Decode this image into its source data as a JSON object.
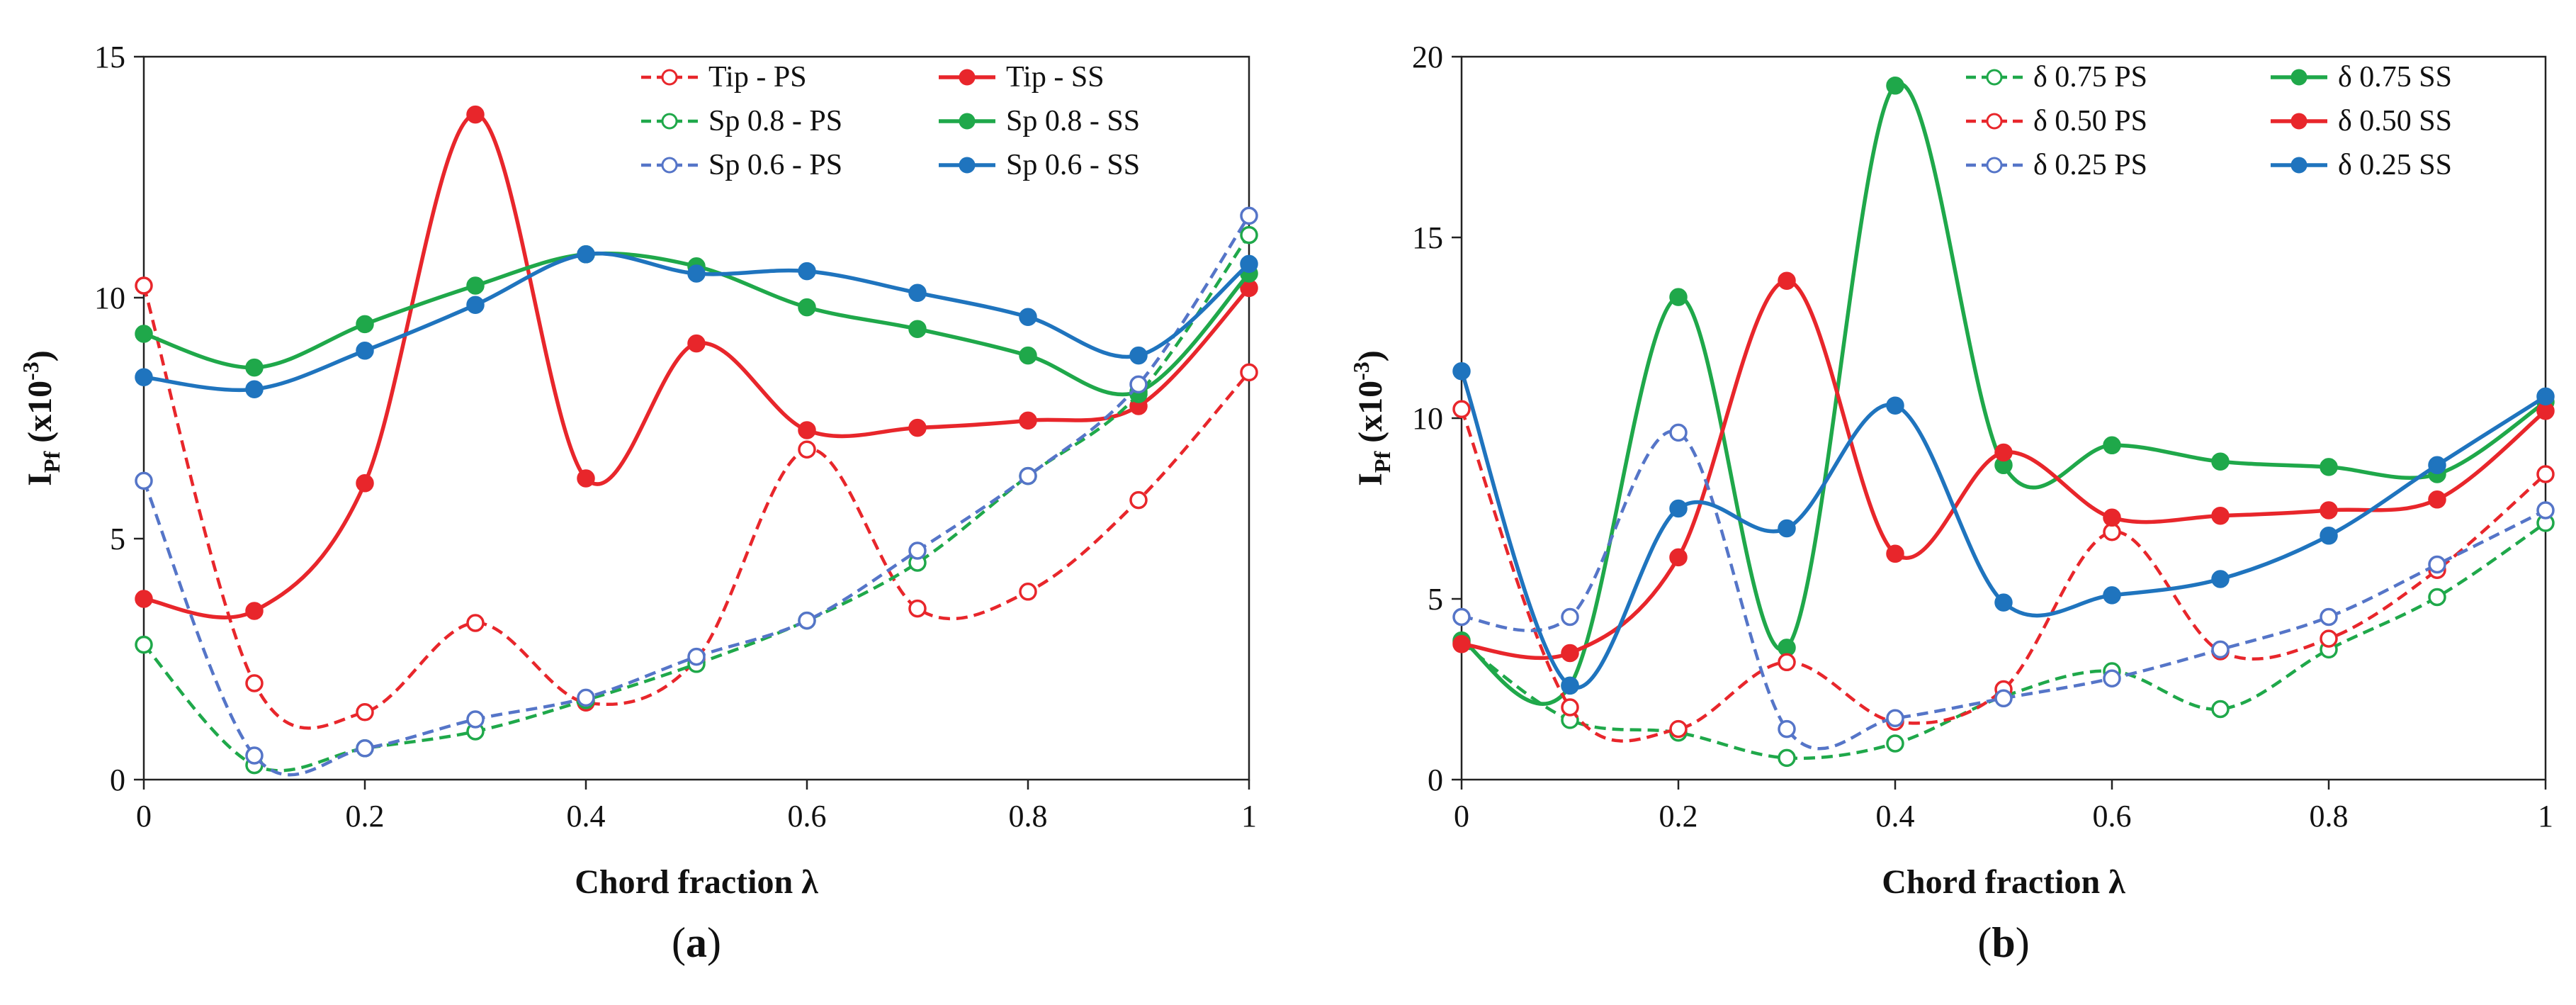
{
  "chart_data": [
    {
      "type": "line",
      "panel_label": "(a)",
      "panel_letter": "a",
      "xlabel": "Chord fraction λ",
      "ylabel_main": "I",
      "ylabel_sub": "Pf",
      "ylabel_rest": " (x10",
      "ylabel_exp": "-3",
      "ylabel_close": ")",
      "xlim": [
        0,
        1
      ],
      "ylim": [
        0,
        15
      ],
      "xticks": [
        0,
        0.2,
        0.4,
        0.6,
        0.8,
        1
      ],
      "xtick_labels": [
        "0",
        "0.2",
        "0.4",
        "0.6",
        "0.8",
        "1"
      ],
      "yticks": [
        0,
        5,
        10,
        15
      ],
      "ytick_labels": [
        "0",
        "5",
        "10",
        "15"
      ],
      "x": [
        0,
        0.1,
        0.2,
        0.3,
        0.4,
        0.5,
        0.6,
        0.7,
        0.8,
        0.9,
        1.0
      ],
      "series": [
        {
          "name": "Tip - PS",
          "color": "#e8262b",
          "dashed": true,
          "filled": false,
          "values": [
            10.25,
            2.0,
            1.4,
            3.25,
            1.6,
            2.5,
            6.85,
            3.55,
            3.9,
            5.8,
            8.45
          ]
        },
        {
          "name": "Tip - SS",
          "color": "#e8262b",
          "dashed": false,
          "filled": true,
          "values": [
            3.75,
            3.5,
            6.15,
            13.8,
            6.25,
            9.05,
            7.25,
            7.3,
            7.45,
            7.75,
            10.2
          ]
        },
        {
          "name": "Sp 0.8 - PS",
          "color": "#1fa84a",
          "dashed": true,
          "filled": false,
          "values": [
            2.8,
            0.3,
            0.65,
            1.0,
            1.65,
            2.4,
            3.3,
            4.5,
            6.3,
            8.0,
            11.3
          ]
        },
        {
          "name": "Sp 0.8 - SS",
          "color": "#1fa84a",
          "dashed": false,
          "filled": true,
          "values": [
            9.25,
            8.55,
            9.45,
            10.25,
            10.9,
            10.65,
            9.8,
            9.35,
            8.8,
            8.05,
            10.5
          ]
        },
        {
          "name": "Sp 0.6 - PS",
          "color": "#5575c8",
          "dashed": true,
          "filled": false,
          "values": [
            6.2,
            0.5,
            0.65,
            1.25,
            1.7,
            2.55,
            3.3,
            4.75,
            6.3,
            8.2,
            11.7
          ]
        },
        {
          "name": "Sp 0.6 - SS",
          "color": "#1f74be",
          "dashed": false,
          "filled": true,
          "values": [
            8.35,
            8.1,
            8.9,
            9.85,
            10.9,
            10.5,
            10.55,
            10.1,
            9.6,
            8.8,
            10.7
          ]
        }
      ]
    },
    {
      "type": "line",
      "panel_label": "(b)",
      "panel_letter": "b",
      "xlabel": "Chord fraction λ",
      "ylabel_main": "I",
      "ylabel_sub": "Pf",
      "ylabel_rest": " (x10",
      "ylabel_exp": "-3",
      "ylabel_close": ")",
      "xlim": [
        0,
        1
      ],
      "ylim": [
        0,
        20
      ],
      "xticks": [
        0,
        0.2,
        0.4,
        0.6,
        0.8,
        1
      ],
      "xtick_labels": [
        "0",
        "0.2",
        "0.4",
        "0.6",
        "0.8",
        "1"
      ],
      "yticks": [
        0,
        5,
        10,
        15,
        20
      ],
      "ytick_labels": [
        "0",
        "5",
        "10",
        "15",
        "20"
      ],
      "x": [
        0,
        0.1,
        0.2,
        0.3,
        0.4,
        0.5,
        0.6,
        0.7,
        0.8,
        0.9,
        1.0
      ],
      "series": [
        {
          "name": "δ 0.75 PS",
          "color": "#1fa84a",
          "dashed": true,
          "filled": false,
          "values": [
            3.8,
            1.65,
            1.3,
            0.6,
            1.0,
            2.3,
            3.0,
            1.95,
            3.6,
            5.05,
            7.1
          ]
        },
        {
          "name": "δ 0.75 SS",
          "color": "#1fa84a",
          "dashed": false,
          "filled": true,
          "values": [
            3.85,
            2.6,
            13.35,
            3.65,
            19.2,
            8.7,
            9.25,
            8.8,
            8.65,
            8.45,
            10.45
          ]
        },
        {
          "name": "δ 0.50 PS",
          "color": "#e8262b",
          "dashed": true,
          "filled": false,
          "values": [
            10.25,
            2.0,
            1.4,
            3.25,
            1.6,
            2.5,
            6.85,
            3.55,
            3.9,
            5.8,
            8.45
          ]
        },
        {
          "name": "δ 0.50 SS",
          "color": "#e8262b",
          "dashed": false,
          "filled": true,
          "values": [
            3.75,
            3.5,
            6.15,
            13.8,
            6.25,
            9.05,
            7.25,
            7.3,
            7.45,
            7.75,
            10.2
          ]
        },
        {
          "name": "δ 0.25 PS",
          "color": "#5575c8",
          "dashed": true,
          "filled": false,
          "values": [
            4.5,
            4.5,
            9.6,
            1.4,
            1.7,
            2.25,
            2.8,
            3.6,
            4.5,
            5.95,
            7.45
          ]
        },
        {
          "name": "δ 0.25 SS",
          "color": "#1f74be",
          "dashed": false,
          "filled": true,
          "values": [
            11.3,
            2.6,
            7.5,
            6.95,
            10.35,
            4.9,
            5.1,
            5.55,
            6.75,
            8.7,
            10.6
          ]
        }
      ]
    }
  ]
}
